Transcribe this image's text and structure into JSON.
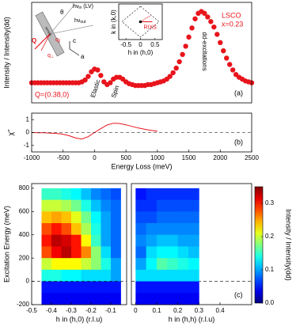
{
  "chart_data": [
    {
      "type": "scatter",
      "ylabel": "Intensity / Intensity(dd)",
      "color": "#e8141c",
      "xlim": [
        -1000,
        2500
      ],
      "ylim": [
        0,
        1.1
      ],
      "x": [
        -1000,
        -950,
        -900,
        -850,
        -800,
        -750,
        -700,
        -650,
        -600,
        -550,
        -500,
        -450,
        -400,
        -350,
        -300,
        -250,
        -200,
        -150,
        -100,
        -50,
        0,
        50,
        100,
        150,
        200,
        250,
        300,
        350,
        400,
        450,
        500,
        550,
        600,
        650,
        700,
        750,
        800,
        850,
        900,
        950,
        1000,
        1050,
        1100,
        1150,
        1200,
        1250,
        1300,
        1350,
        1400,
        1450,
        1500,
        1550,
        1600,
        1650,
        1700,
        1750,
        1800,
        1850,
        1900,
        1950,
        2000,
        2050,
        2100,
        2150,
        2200,
        2250,
        2300,
        2350,
        2400,
        2450,
        2500
      ],
      "values": [
        0.22,
        0.22,
        0.22,
        0.22,
        0.22,
        0.22,
        0.22,
        0.22,
        0.22,
        0.22,
        0.22,
        0.22,
        0.22,
        0.22,
        0.22,
        0.22,
        0.23,
        0.25,
        0.29,
        0.34,
        0.37,
        0.36,
        0.3,
        0.23,
        0.2,
        0.22,
        0.26,
        0.28,
        0.28,
        0.26,
        0.23,
        0.21,
        0.2,
        0.19,
        0.19,
        0.19,
        0.19,
        0.2,
        0.2,
        0.21,
        0.22,
        0.23,
        0.24,
        0.26,
        0.29,
        0.33,
        0.38,
        0.45,
        0.53,
        0.62,
        0.72,
        0.82,
        0.92,
        0.98,
        1.0,
        0.98,
        0.94,
        0.89,
        0.83,
        0.75,
        0.66,
        0.57,
        0.49,
        0.42,
        0.36,
        0.31,
        0.28,
        0.26,
        0.24,
        0.23,
        0.22
      ],
      "annotations": {
        "elastic": "Elastic",
        "spin": "Spin",
        "dd": "dd-excitations",
        "material": "LSCO",
        "doping": "x=0.23",
        "q": "Q=(0.38,0)",
        "panel": "(a)"
      },
      "inset": {
        "xlabel": "h in (h,0)",
        "ylabel": "k in (k,0)",
        "xlim": [
          -0.75,
          0.75
        ],
        "xticks": [
          -0.5,
          0,
          0.5
        ],
        "label": "RIXS"
      },
      "geometry": {
        "theta": "θ",
        "hv_in": {
          "main": "hν",
          "sub": "in",
          "tail": " (LV)"
        },
        "hv_out": {
          "main": "hν",
          "sub": "out"
        },
        "q": "Q",
        "q_par": {
          "main": "q",
          "sub": "∥"
        },
        "q_perp": {
          "main": "q",
          "sub": "⊥"
        },
        "c": "c",
        "a": "a",
        "sample": "sample"
      }
    },
    {
      "type": "line",
      "ylabel": "χ''",
      "xlabel": "Energy Loss (meV)",
      "label": "(b)",
      "color": "#e8141c",
      "xlim": [
        -1000,
        2500
      ],
      "ylim": [
        -1.5,
        1.5
      ],
      "xticks": [
        -1000,
        -500,
        0,
        500,
        1000,
        1500,
        2000,
        2500
      ],
      "yticks": [
        -1,
        0,
        1
      ],
      "x": [
        -1000,
        -900,
        -800,
        -700,
        -600,
        -500,
        -400,
        -300,
        -200,
        -100,
        0,
        100,
        200,
        300,
        400,
        500,
        600,
        700,
        800,
        900,
        1000
      ],
      "values": [
        0,
        -0.01,
        -0.02,
        -0.04,
        -0.07,
        -0.13,
        -0.25,
        -0.42,
        -0.5,
        -0.32,
        0,
        0.3,
        0.58,
        0.72,
        0.7,
        0.6,
        0.47,
        0.35,
        0.25,
        0.17,
        0.1
      ]
    },
    {
      "type": "heatmap",
      "ylabel": "Excitation Energy (meV)",
      "xlabel": "h in (h,0) (r.l.u)",
      "xlim": [
        -0.5,
        -0.02
      ],
      "ylim": [
        -200,
        840
      ],
      "xticks": [
        -0.5,
        -0.4,
        -0.3,
        -0.2,
        -0.1
      ],
      "yticks": [
        -200,
        0,
        200,
        400,
        600,
        800
      ],
      "clim": [
        0,
        0.35
      ],
      "colorbar": {
        "label": "Intensity / Intensity(dd)",
        "ticks": [
          {
            "value": 0,
            "label": "0.0"
          },
          0.1,
          0.2,
          0.3
        ]
      },
      "x": [
        -0.425,
        -0.375,
        -0.325,
        -0.275,
        -0.225,
        -0.175,
        -0.125,
        -0.075
      ],
      "y": [
        750,
        650,
        550,
        450,
        350,
        250,
        150,
        50,
        -50,
        -150
      ],
      "z": [
        [
          0.15,
          0.15,
          0.14,
          0.13,
          0.11,
          0.09,
          0.08,
          0.07
        ],
        [
          0.2,
          0.2,
          0.19,
          0.17,
          0.14,
          0.11,
          0.09,
          0.08
        ],
        [
          0.24,
          0.25,
          0.24,
          0.21,
          0.17,
          0.13,
          0.1,
          0.08
        ],
        [
          0.28,
          0.3,
          0.28,
          0.24,
          0.19,
          0.14,
          0.1,
          0.08
        ],
        [
          0.3,
          0.33,
          0.32,
          0.3,
          0.22,
          0.15,
          0.1,
          0.08
        ],
        [
          0.28,
          0.31,
          0.33,
          0.3,
          0.26,
          0.18,
          0.12,
          0.08
        ],
        [
          0.2,
          0.22,
          0.22,
          0.22,
          0.2,
          0.18,
          0.14,
          0.1
        ],
        [
          0.14,
          0.14,
          0.13,
          0.13,
          0.12,
          0.12,
          0.12,
          0.1
        ],
        [
          0.05,
          0.05,
          0.05,
          0.05,
          0.05,
          0.05,
          0.05,
          0.05
        ],
        [
          0.04,
          0.04,
          0.04,
          0.04,
          0.04,
          0.04,
          0.04,
          0.04
        ]
      ]
    },
    {
      "type": "heatmap",
      "xlabel": "h in (h,h) (r.l.u)",
      "label": "(c)",
      "xlim": [
        -0.02,
        0.55
      ],
      "ylim": [
        -200,
        840
      ],
      "xticks": [
        0,
        0.1,
        0.2,
        0.3,
        0.4
      ],
      "clim": [
        0,
        0.35
      ],
      "x": [
        0.025,
        0.075,
        0.125,
        0.175,
        0.225,
        0.275
      ],
      "y": [
        750,
        650,
        550,
        450,
        350,
        250,
        150,
        50,
        -50,
        -150
      ],
      "z": [
        [
          0.05,
          0.06,
          0.06,
          0.06,
          0.06,
          0.06
        ],
        [
          0.06,
          0.06,
          0.07,
          0.07,
          0.07,
          0.07
        ],
        [
          0.07,
          0.07,
          0.08,
          0.08,
          0.08,
          0.08
        ],
        [
          0.08,
          0.09,
          0.09,
          0.09,
          0.09,
          0.09
        ],
        [
          0.09,
          0.1,
          0.11,
          0.11,
          0.1,
          0.1
        ],
        [
          0.08,
          0.12,
          0.13,
          0.13,
          0.12,
          0.11
        ],
        [
          0.1,
          0.13,
          0.16,
          0.15,
          0.14,
          0.13
        ],
        [
          0.12,
          0.12,
          0.12,
          0.12,
          0.12,
          0.12
        ],
        [
          0.05,
          0.05,
          0.05,
          0.05,
          0.05,
          0.05
        ],
        [
          0.04,
          0.04,
          0.04,
          0.04,
          0.04,
          0.04
        ]
      ]
    }
  ]
}
